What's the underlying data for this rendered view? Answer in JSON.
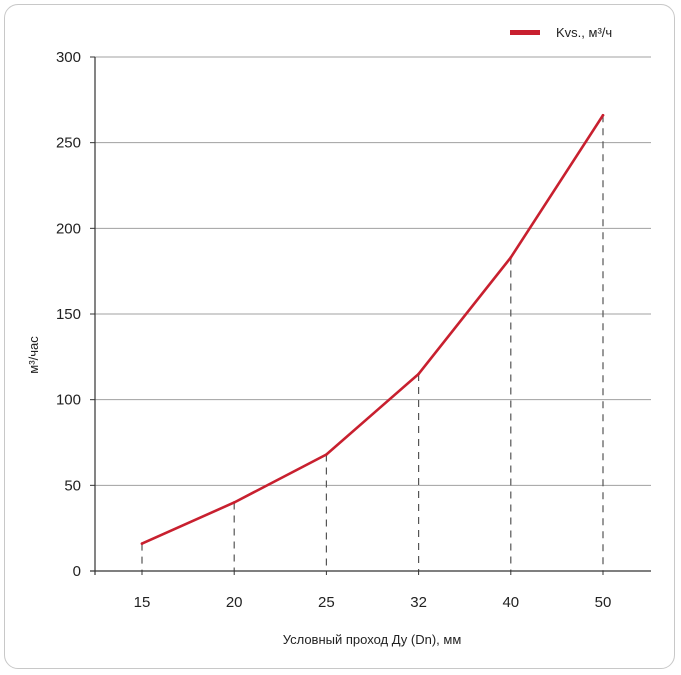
{
  "chart_data": {
    "type": "line",
    "categories": [
      "15",
      "20",
      "25",
      "32",
      "40",
      "50"
    ],
    "series": [
      {
        "name": "Kvs., м³/ч",
        "values": [
          16,
          40,
          68,
          115,
          183,
          266
        ],
        "color": "#c8202f"
      }
    ],
    "xlabel": "Условный проход Ду (Dn), мм",
    "ylabel": "м³/час",
    "ylim": [
      0,
      300
    ],
    "yticks": [
      0,
      50,
      100,
      150,
      200,
      250,
      300
    ],
    "grid": "horizontal",
    "drop_lines": "dashed",
    "legend": "top-right"
  }
}
